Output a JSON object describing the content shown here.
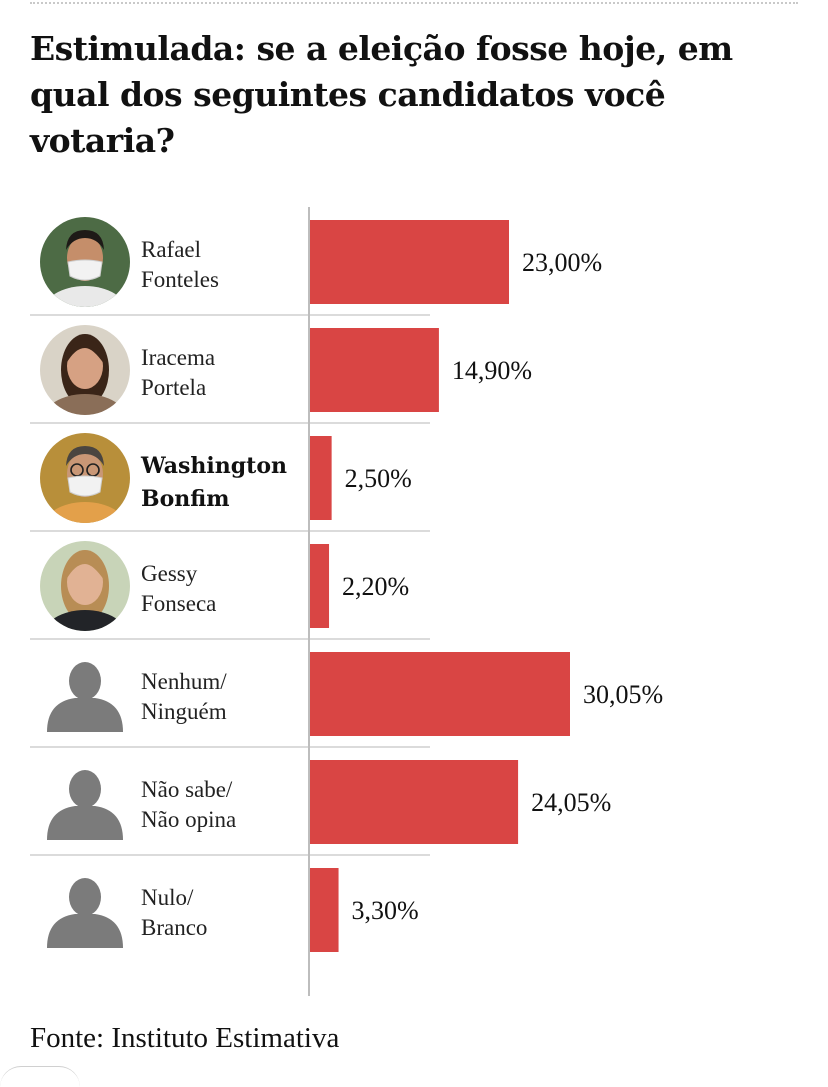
{
  "title": "Estimulada: se a eleição fosse hoje, em qual dos seguintes candidatos você votaria?",
  "source": "Fonte: Instituto Estimativa",
  "colors": {
    "bar": "#d94544",
    "divider": "#cfcfcf",
    "axis": "#bdbdbd",
    "placeholder_avatar": "#7b7b7b"
  },
  "chart_data": {
    "type": "bar",
    "orientation": "horizontal",
    "title": "Estimulada: se a eleição fosse hoje, em qual dos seguintes candidatos você votaria?",
    "xlabel": "",
    "ylabel": "",
    "xlim": [
      0,
      30.05
    ],
    "grid": false,
    "legend": "none",
    "categories": [
      {
        "line1": "Rafael",
        "line2": "Fonteles",
        "bold": false,
        "avatar": "photo-masked-man-icon"
      },
      {
        "line1": "Iracema",
        "line2": "Portela",
        "bold": false,
        "avatar": "photo-woman-icon"
      },
      {
        "line1": "Washington",
        "line2": "Bonfim",
        "bold": true,
        "avatar": "photo-masked-man-glasses-icon"
      },
      {
        "line1": "Gessy",
        "line2": "Fonseca",
        "bold": false,
        "avatar": "photo-woman-blonde-icon"
      },
      {
        "line1": "Nenhum/",
        "line2": "Ninguém",
        "bold": false,
        "avatar": "person-silhouette-icon"
      },
      {
        "line1": "Não sabe/",
        "line2": "Não opina",
        "bold": false,
        "avatar": "person-silhouette-icon"
      },
      {
        "line1": "Nulo/",
        "line2": "Branco",
        "bold": false,
        "avatar": "person-silhouette-icon"
      }
    ],
    "values": [
      23.0,
      14.9,
      2.5,
      2.2,
      30.05,
      24.05,
      3.3
    ],
    "value_labels": [
      "23,00%",
      "14,90%",
      "2,50%",
      "2,20%",
      "30,05%",
      "24,05%",
      "3,30%"
    ]
  }
}
